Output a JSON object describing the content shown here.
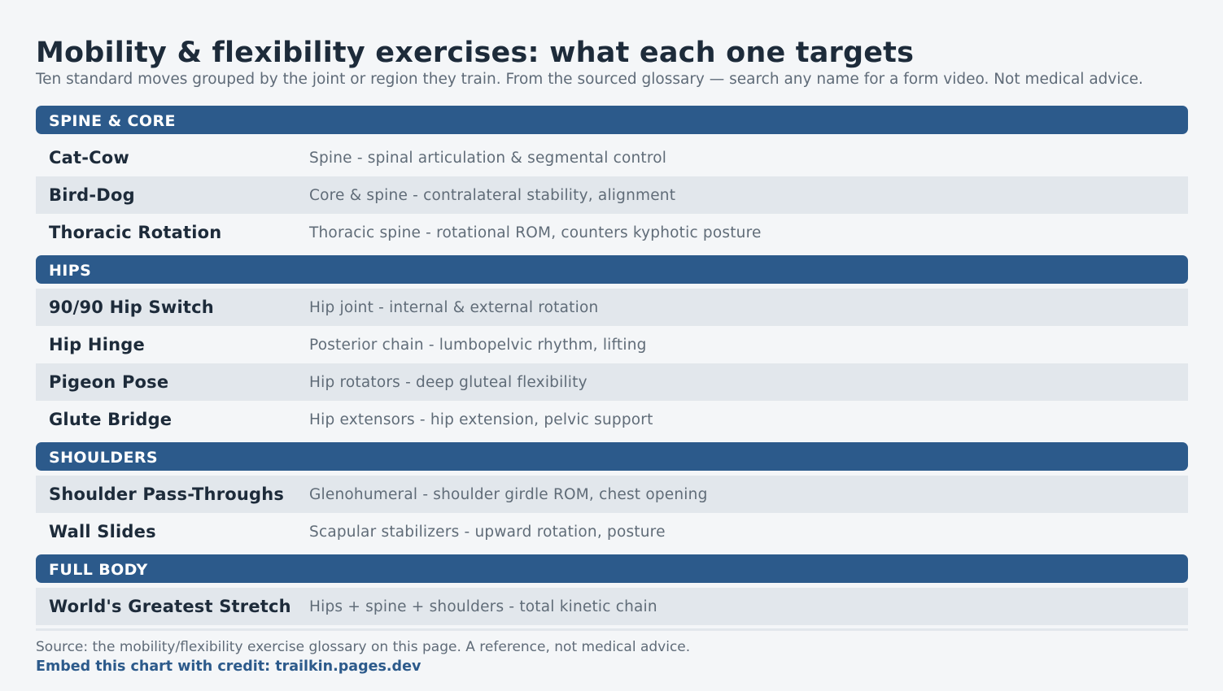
{
  "title": "Mobility & flexibility exercises: what each one targets",
  "subtitle": "Ten standard moves grouped by the joint or region they train. From the sourced glossary — search any name for a form video. Not medical advice.",
  "groups": [
    {
      "label": "SPINE & CORE",
      "rows": [
        {
          "name": "Cat-Cow",
          "desc": "Spine - spinal articulation & segmental control"
        },
        {
          "name": "Bird-Dog",
          "desc": "Core & spine - contralateral stability, alignment"
        },
        {
          "name": "Thoracic Rotation",
          "desc": "Thoracic spine - rotational ROM, counters kyphotic posture"
        }
      ]
    },
    {
      "label": "HIPS",
      "rows": [
        {
          "name": "90/90 Hip Switch",
          "desc": "Hip joint - internal & external rotation"
        },
        {
          "name": "Hip Hinge",
          "desc": "Posterior chain - lumbopelvic rhythm, lifting"
        },
        {
          "name": "Pigeon Pose",
          "desc": "Hip rotators - deep gluteal flexibility"
        },
        {
          "name": "Glute Bridge",
          "desc": "Hip extensors - hip extension, pelvic support"
        }
      ]
    },
    {
      "label": "SHOULDERS",
      "rows": [
        {
          "name": "Shoulder Pass-Throughs",
          "desc": "Glenohumeral - shoulder girdle ROM, chest opening"
        },
        {
          "name": "Wall Slides",
          "desc": "Scapular stabilizers - upward rotation, posture"
        }
      ]
    },
    {
      "label": "FULL BODY",
      "rows": [
        {
          "name": "World's Greatest Stretch",
          "desc": "Hips + spine + shoulders - total kinetic chain"
        }
      ]
    }
  ],
  "footer": {
    "source": "Source: the mobility/flexibility exercise glossary on this page. A reference, not medical advice.",
    "credit": "Embed this chart with credit: trailkin.pages.dev"
  },
  "colors": {
    "header_bg": "#2c5a8b",
    "row_shade": "#e2e7ec",
    "page_bg": "#f4f6f8"
  }
}
